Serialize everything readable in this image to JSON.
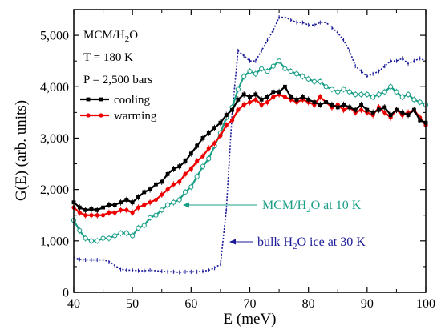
{
  "chart_data": {
    "type": "line",
    "xlabel": "E (meV)",
    "ylabel": "G(E) (arb. units)",
    "xlim": [
      40,
      100
    ],
    "ylim": [
      0,
      5500
    ],
    "xticks": [
      40,
      50,
      60,
      70,
      80,
      90,
      100
    ],
    "yticks": [
      0,
      1000,
      2000,
      3000,
      4000,
      5000
    ],
    "xtick_labels": [
      "40",
      "50",
      "60",
      "70",
      "80",
      "90",
      "100"
    ],
    "ytick_labels": [
      "0",
      "1,000",
      "2,000",
      "3,000",
      "4,000",
      "5,000"
    ],
    "info": {
      "sample": "MCM/H",
      "sample_sub": "2",
      "sample_end": "O",
      "temperature": "T = 180 K",
      "pressure": "P = 2,500 bars"
    },
    "legend_placement": "top-left",
    "annotations": [
      {
        "series": "mcm10k",
        "parts": [
          "MCM/H",
          "2",
          "O at 10 K"
        ],
        "color": "#1a9e86"
      },
      {
        "series": "bulk",
        "parts": [
          "bulk H",
          "2",
          "O ice at 30 K"
        ],
        "color": "#1a1a99"
      }
    ],
    "series": [
      {
        "id": "cooling",
        "name": "cooling",
        "color": "#000000",
        "style": "solid",
        "marker": "square",
        "x": [
          40,
          41,
          42,
          43,
          44,
          45,
          46,
          47,
          48,
          49,
          50,
          51,
          52,
          53,
          54,
          55,
          56,
          57,
          58,
          59,
          60,
          61,
          62,
          63,
          64,
          65,
          66,
          67,
          68,
          69,
          70,
          71,
          72,
          73,
          74,
          75,
          76,
          77,
          78,
          79,
          80,
          81,
          82,
          83,
          84,
          85,
          86,
          87,
          88,
          89,
          90,
          91,
          92,
          93,
          94,
          95,
          96,
          97,
          98,
          99,
          100
        ],
        "y": [
          1750,
          1650,
          1600,
          1620,
          1600,
          1650,
          1700,
          1700,
          1750,
          1800,
          1750,
          1850,
          1950,
          2000,
          2100,
          2150,
          2300,
          2400,
          2450,
          2550,
          2700,
          2850,
          3000,
          3100,
          3200,
          3300,
          3450,
          3550,
          3750,
          3850,
          3800,
          3850,
          3750,
          3800,
          3900,
          3900,
          4000,
          3800,
          3750,
          3800,
          3750,
          3700,
          3650,
          3700,
          3650,
          3600,
          3650,
          3600,
          3550,
          3650,
          3550,
          3500,
          3550,
          3600,
          3450,
          3550,
          3500,
          3450,
          3550,
          3350,
          3300
        ]
      },
      {
        "id": "warming",
        "name": "warming",
        "color": "#ee0000",
        "style": "solid",
        "marker": "circle",
        "x": [
          40,
          41,
          42,
          43,
          44,
          45,
          46,
          47,
          48,
          49,
          50,
          51,
          52,
          53,
          54,
          55,
          56,
          57,
          58,
          59,
          60,
          61,
          62,
          63,
          64,
          65,
          66,
          67,
          68,
          69,
          70,
          71,
          72,
          73,
          74,
          75,
          76,
          77,
          78,
          79,
          80,
          81,
          82,
          83,
          84,
          85,
          86,
          87,
          88,
          89,
          90,
          91,
          92,
          93,
          94,
          95,
          96,
          97,
          98,
          99,
          100
        ],
        "y": [
          1650,
          1550,
          1500,
          1500,
          1500,
          1500,
          1550,
          1550,
          1600,
          1600,
          1550,
          1650,
          1700,
          1750,
          1800,
          1900,
          2000,
          2100,
          2150,
          2300,
          2400,
          2550,
          2650,
          2800,
          2900,
          3050,
          3250,
          3350,
          3550,
          3650,
          3700,
          3750,
          3650,
          3700,
          3800,
          3850,
          3800,
          3750,
          3700,
          3750,
          3700,
          3650,
          3800,
          3700,
          3600,
          3650,
          3550,
          3600,
          3500,
          3550,
          3500,
          3450,
          3600,
          3500,
          3400,
          3550,
          3450,
          3500,
          3550,
          3400,
          3250
        ]
      },
      {
        "id": "mcm10k",
        "name": "MCM/H2O at 10 K",
        "color": "#1a9e86",
        "style": "solid",
        "marker": "open-circle",
        "x": [
          40,
          41,
          42,
          43,
          44,
          45,
          46,
          47,
          48,
          49,
          50,
          51,
          52,
          53,
          54,
          55,
          56,
          57,
          58,
          59,
          60,
          61,
          62,
          63,
          64,
          65,
          66,
          67,
          68,
          69,
          70,
          71,
          72,
          73,
          74,
          75,
          76,
          77,
          78,
          79,
          80,
          81,
          82,
          83,
          84,
          85,
          86,
          87,
          88,
          89,
          90,
          91,
          92,
          93,
          94,
          95,
          96,
          97,
          98,
          99,
          100
        ],
        "y": [
          1400,
          1200,
          1050,
          1000,
          1000,
          1050,
          1050,
          1100,
          1150,
          1150,
          1100,
          1250,
          1300,
          1450,
          1500,
          1600,
          1700,
          1750,
          1800,
          1950,
          2050,
          2250,
          2450,
          2600,
          2850,
          3100,
          3400,
          3600,
          3950,
          4200,
          4300,
          4250,
          4350,
          4300,
          4400,
          4500,
          4350,
          4300,
          4250,
          4200,
          4150,
          4100,
          4100,
          4000,
          3950,
          3900,
          3950,
          3900,
          3850,
          3850,
          3850,
          3800,
          3850,
          3900,
          4000,
          3900,
          3800,
          3850,
          3750,
          3700,
          3650
        ]
      },
      {
        "id": "bulk",
        "name": "bulk H2O ice at 30 K",
        "color": "#1a1a99",
        "style": "dotted",
        "marker": "none",
        "x": [
          40,
          41,
          42,
          43,
          44,
          45,
          46,
          47,
          48,
          49,
          50,
          51,
          52,
          53,
          54,
          55,
          56,
          57,
          58,
          59,
          60,
          61,
          62,
          63,
          64,
          65,
          66,
          67,
          68,
          69,
          70,
          71,
          72,
          73,
          74,
          75,
          76,
          77,
          78,
          79,
          80,
          81,
          82,
          83,
          84,
          85,
          86,
          87,
          88,
          89,
          90,
          91,
          92,
          93,
          94,
          95,
          96,
          97,
          98,
          99,
          100
        ],
        "y": [
          680,
          640,
          630,
          630,
          630,
          630,
          600,
          520,
          450,
          430,
          430,
          420,
          420,
          430,
          420,
          410,
          400,
          400,
          390,
          400,
          400,
          400,
          410,
          430,
          470,
          550,
          1600,
          3500,
          4700,
          4600,
          4500,
          4500,
          4700,
          4900,
          5100,
          5350,
          5350,
          5300,
          5250,
          5250,
          5200,
          5200,
          5250,
          5250,
          5150,
          5050,
          4900,
          4700,
          4400,
          4300,
          4200,
          4250,
          4300,
          4400,
          4500,
          4500,
          4550,
          4450,
          4500,
          4550,
          4500
        ]
      }
    ]
  }
}
